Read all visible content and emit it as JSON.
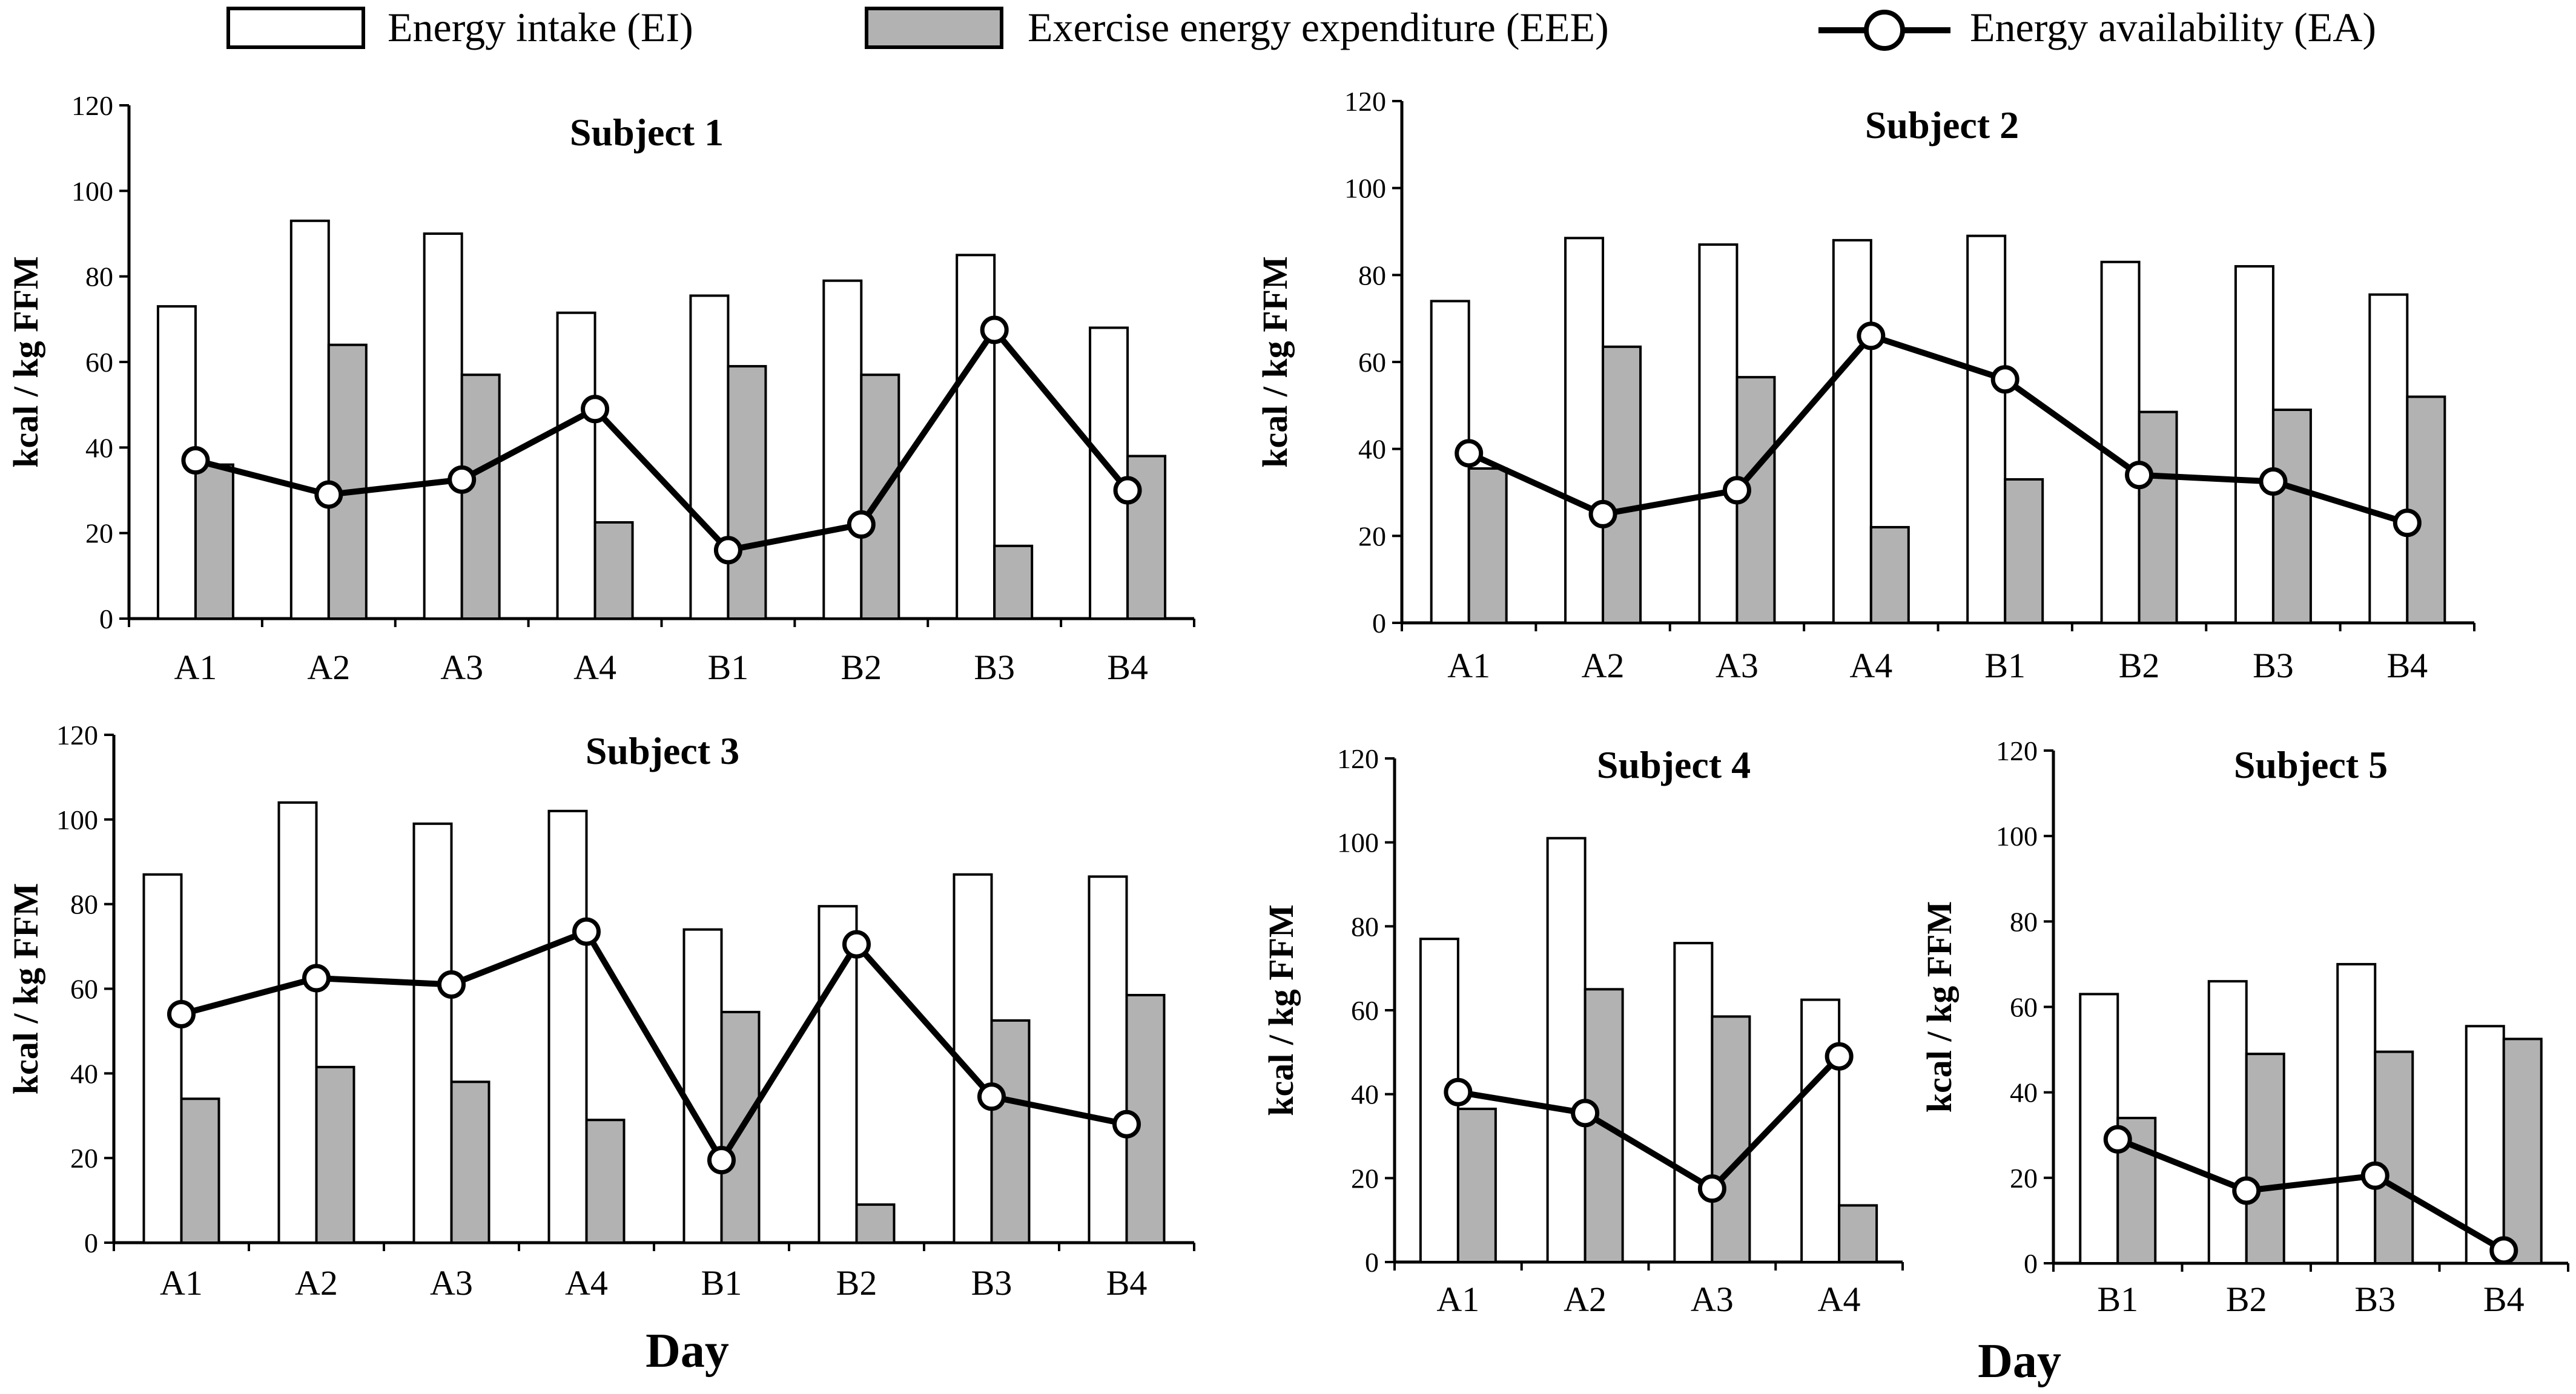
{
  "legend": {
    "ei": "Energy intake (EI)",
    "eee": "Exercise energy expenditure (EEE)",
    "ea": "Energy availability (EA)"
  },
  "colors": {
    "ei": "#ffffff",
    "eee": "#b2b2b2",
    "ea_line": "#000000",
    "axis": "#000000"
  },
  "xlabel": "Day",
  "chart_data": [
    {
      "type": "bar",
      "title": "Subject 1",
      "xlabel": "",
      "ylabel": "kcal / kg FFM",
      "ylim": [
        0,
        120
      ],
      "yticks": [
        0,
        20,
        40,
        60,
        80,
        100,
        120
      ],
      "categories": [
        "A1",
        "A2",
        "A3",
        "A4",
        "B1",
        "B2",
        "B3",
        "B4"
      ],
      "series": [
        {
          "name": "Energy intake (EI)",
          "type": "bar",
          "values": [
            73,
            93,
            90,
            71.5,
            75.5,
            79,
            85,
            68
          ]
        },
        {
          "name": "Exercise energy expenditure (EEE)",
          "type": "bar",
          "values": [
            36,
            64,
            57,
            22.5,
            59,
            57,
            17,
            38
          ]
        },
        {
          "name": "Energy availability (EA)",
          "type": "line",
          "values": [
            37,
            29,
            32.5,
            49,
            16,
            22,
            67.5,
            30
          ]
        }
      ]
    },
    {
      "type": "bar",
      "title": "Subject 2",
      "xlabel": "",
      "ylabel": "kcal / kg FFM",
      "ylim": [
        0,
        120
      ],
      "yticks": [
        0,
        20,
        40,
        60,
        80,
        100,
        120
      ],
      "categories": [
        "A1",
        "A2",
        "A3",
        "A4",
        "B1",
        "B2",
        "B3",
        "B4"
      ],
      "series": [
        {
          "name": "Energy intake (EI)",
          "type": "bar",
          "values": [
            74,
            88.5,
            87,
            88,
            89,
            83,
            82,
            75.5
          ]
        },
        {
          "name": "Exercise energy expenditure (EEE)",
          "type": "bar",
          "values": [
            35.5,
            63.5,
            56.5,
            22,
            33,
            48.5,
            49,
            52
          ]
        },
        {
          "name": "Energy availability (EA)",
          "type": "line",
          "values": [
            39,
            25,
            30.5,
            66,
            56,
            34,
            32.5,
            23
          ]
        }
      ]
    },
    {
      "type": "bar",
      "title": "Subject 3",
      "xlabel": "",
      "ylabel": "kcal / kg FFM",
      "ylim": [
        0,
        120
      ],
      "yticks": [
        0,
        20,
        40,
        60,
        80,
        100,
        120
      ],
      "categories": [
        "A1",
        "A2",
        "A3",
        "A4",
        "B1",
        "B2",
        "B3",
        "B4"
      ],
      "series": [
        {
          "name": "Energy intake (EI)",
          "type": "bar",
          "values": [
            87,
            104,
            99,
            102,
            74,
            79.5,
            87,
            86.5
          ]
        },
        {
          "name": "Exercise energy expenditure (EEE)",
          "type": "bar",
          "values": [
            34,
            41.5,
            38,
            29,
            54.5,
            9,
            52.5,
            58.5
          ]
        },
        {
          "name": "Energy availability (EA)",
          "type": "line",
          "values": [
            54,
            62.5,
            61,
            73.5,
            19.5,
            70.5,
            34.5,
            28
          ]
        }
      ]
    },
    {
      "type": "bar",
      "title": "Subject 4",
      "xlabel": "",
      "ylabel": "kcal / kg FFM",
      "ylim": [
        0,
        120
      ],
      "yticks": [
        0,
        20,
        40,
        60,
        80,
        100,
        120
      ],
      "categories": [
        "A1",
        "A2",
        "A3",
        "A4"
      ],
      "series": [
        {
          "name": "Energy intake (EI)",
          "type": "bar",
          "values": [
            77,
            101,
            76,
            62.5
          ]
        },
        {
          "name": "Exercise energy expenditure (EEE)",
          "type": "bar",
          "values": [
            36.5,
            65,
            58.5,
            13.5
          ]
        },
        {
          "name": "Energy availability (EA)",
          "type": "line",
          "values": [
            40.5,
            35.5,
            17.5,
            49
          ]
        }
      ]
    },
    {
      "type": "bar",
      "title": "Subject 5",
      "xlabel": "",
      "ylabel": "kcal / kg FFM",
      "ylim": [
        0,
        120
      ],
      "yticks": [
        0,
        20,
        40,
        60,
        80,
        100,
        120
      ],
      "categories": [
        "B1",
        "B2",
        "B3",
        "B4"
      ],
      "series": [
        {
          "name": "Energy intake (EI)",
          "type": "bar",
          "values": [
            63,
            66,
            70,
            55.5
          ]
        },
        {
          "name": "Exercise energy expenditure (EEE)",
          "type": "bar",
          "values": [
            34,
            49,
            49.5,
            52.5
          ]
        },
        {
          "name": "Energy availability (EA)",
          "type": "line",
          "values": [
            29,
            17,
            20.5,
            3
          ]
        }
      ]
    }
  ]
}
